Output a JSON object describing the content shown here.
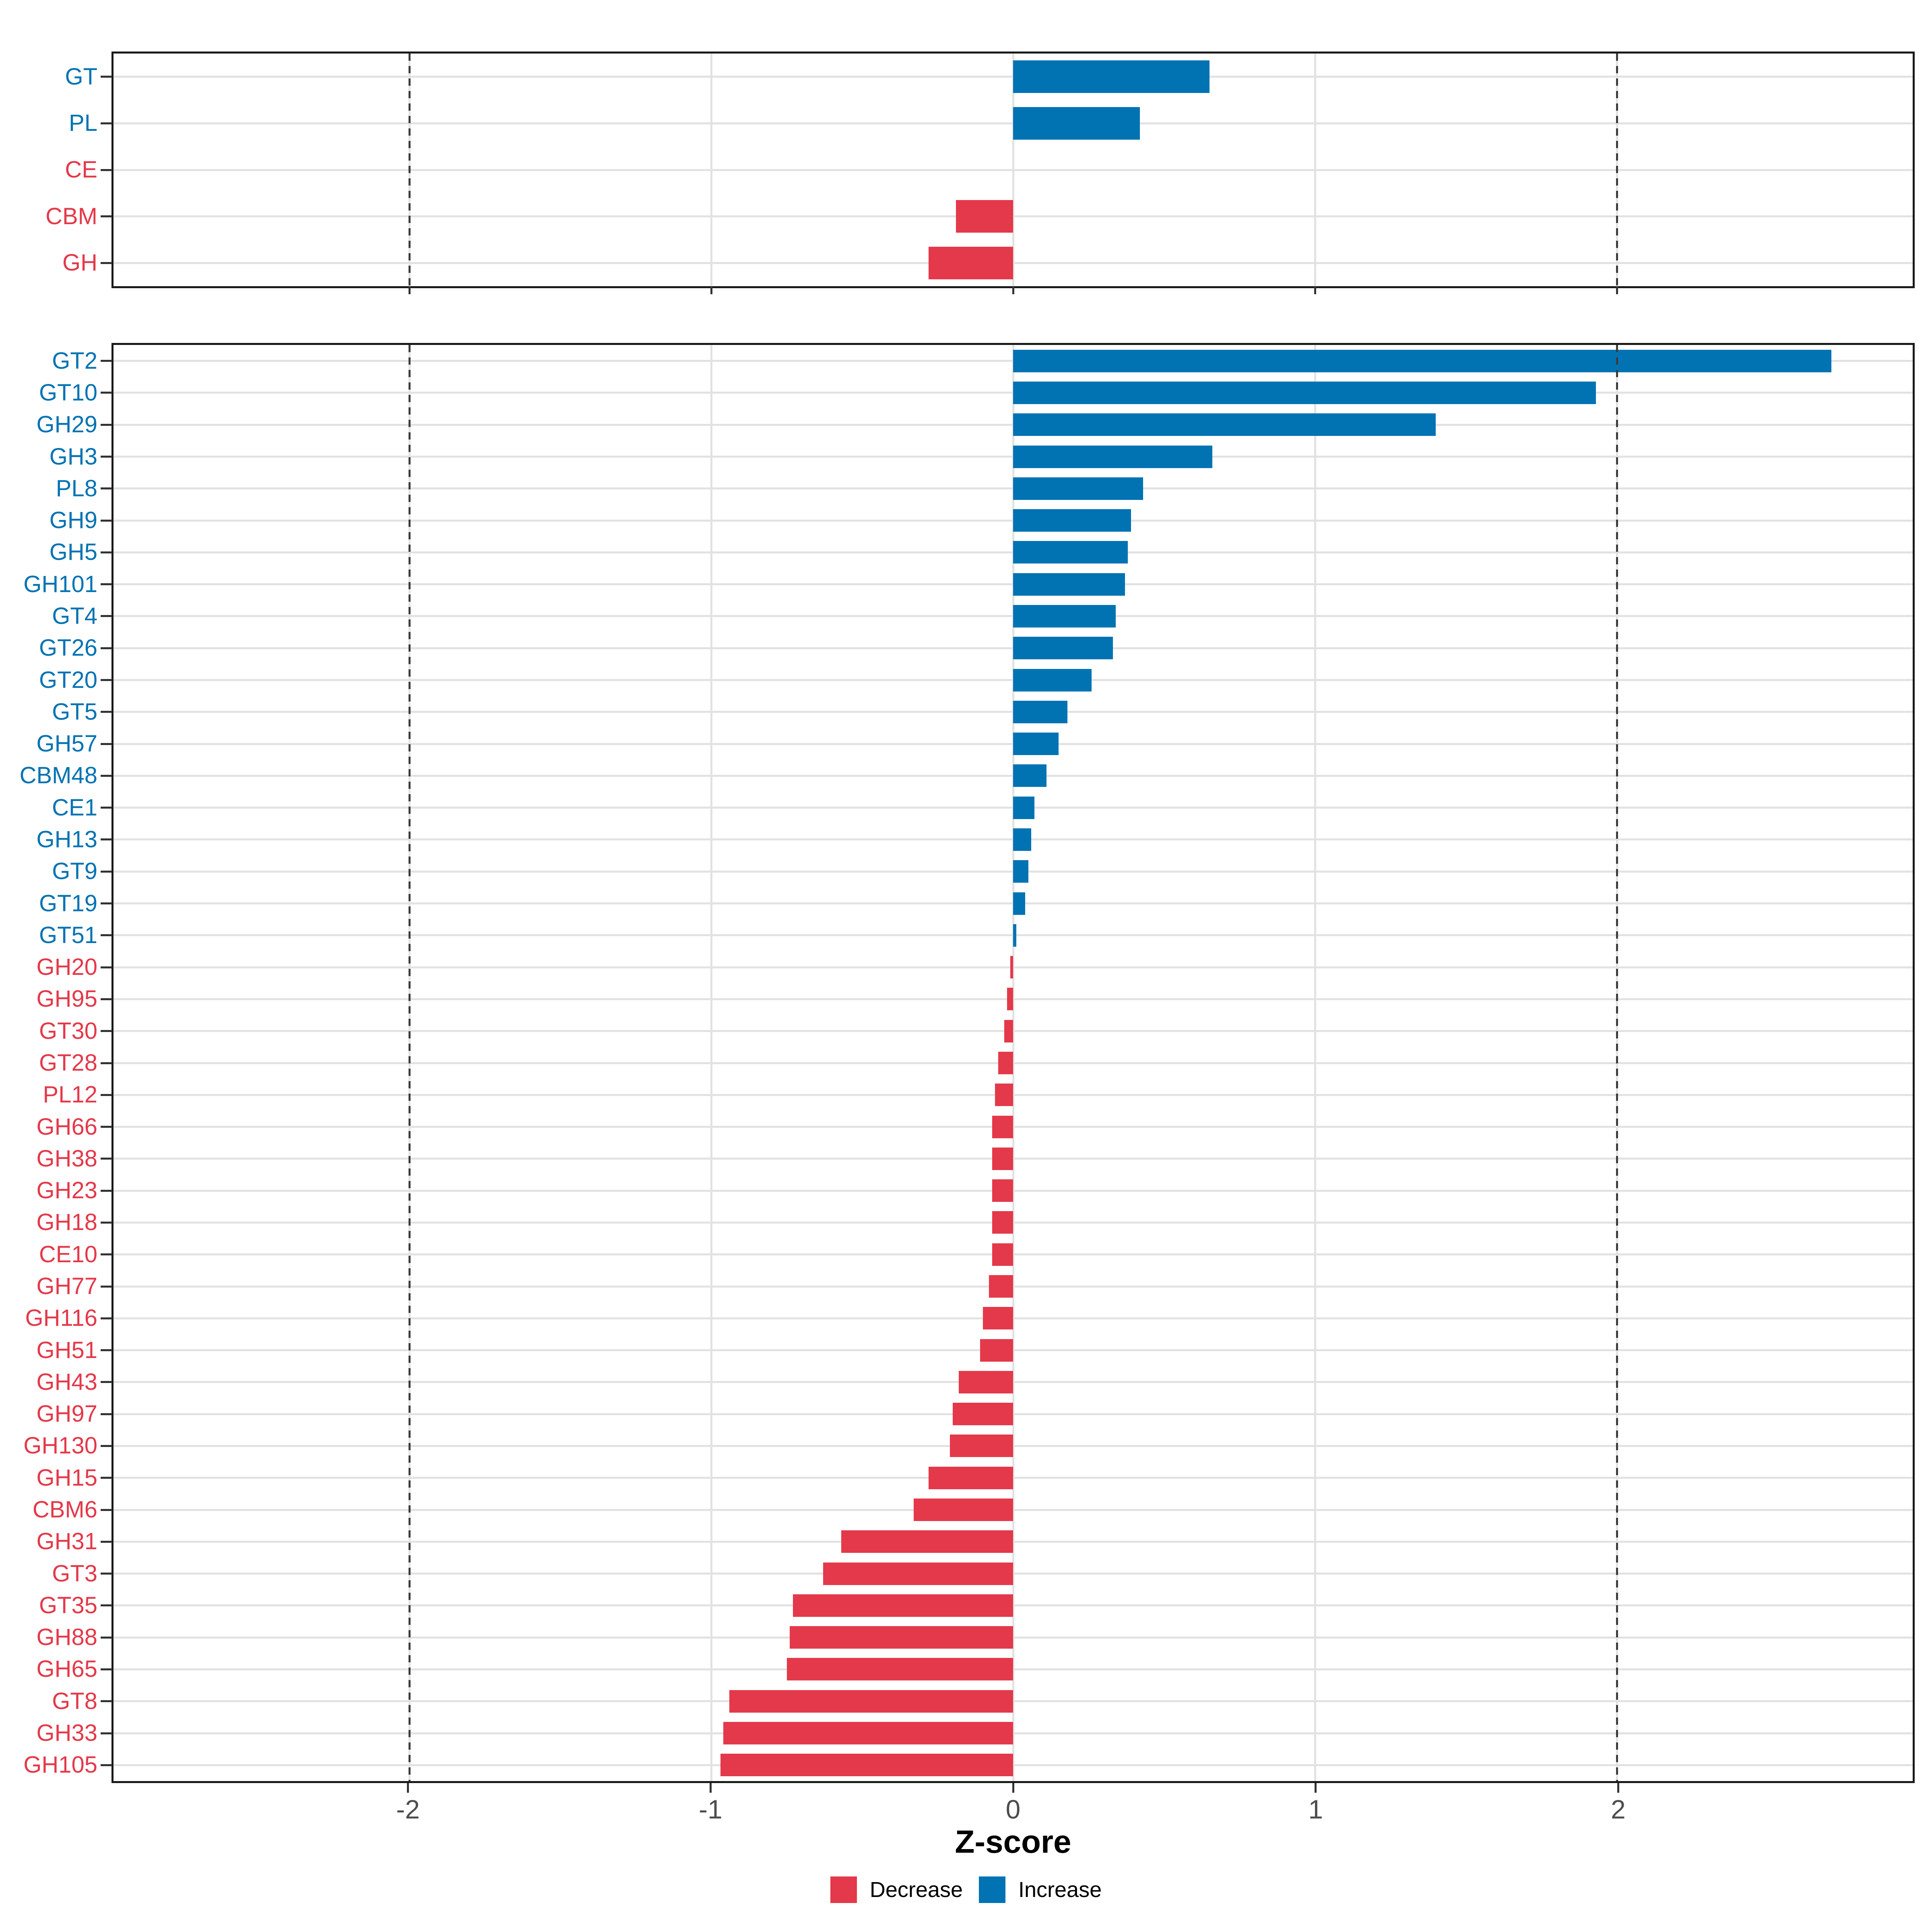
{
  "chart_data": {
    "type": "bar",
    "orientation": "horizontal",
    "xlabel": "Z-score",
    "xlim": [
      -2.98,
      2.98
    ],
    "x_ticks": [
      -2,
      -1,
      0,
      1,
      2
    ],
    "reference_lines_x": [
      -2,
      2
    ],
    "grid": true,
    "legend_position": "bottom",
    "legend": [
      {
        "key": "decrease",
        "label": "Decrease"
      },
      {
        "key": "increase",
        "label": "Increase"
      }
    ],
    "panels": [
      {
        "name": "cazyme-class-panel",
        "categories": [
          "GT",
          "PL",
          "CE",
          "CBM",
          "GH"
        ],
        "values": [
          0.65,
          0.42,
          0,
          -0.19,
          -0.28
        ]
      },
      {
        "name": "cazyme-family-panel",
        "categories": [
          "GT2",
          "GT10",
          "GH29",
          "GH3",
          "PL8",
          "GH9",
          "GH5",
          "GH101",
          "GT4",
          "GT26",
          "GT20",
          "GT5",
          "GH57",
          "CBM48",
          "CE1",
          "GH13",
          "GT9",
          "GT19",
          "GT51",
          "GH20",
          "GH95",
          "GT30",
          "GT28",
          "PL12",
          "GH66",
          "GH38",
          "GH23",
          "GH18",
          "CE10",
          "GH77",
          "GH116",
          "GH51",
          "GH43",
          "GH97",
          "GH130",
          "GH15",
          "CBM6",
          "GH31",
          "GT3",
          "GT35",
          "GH88",
          "GH65",
          "GT8",
          "GH33",
          "GH105"
        ],
        "values": [
          2.71,
          1.93,
          1.4,
          0.66,
          0.43,
          0.39,
          0.38,
          0.37,
          0.34,
          0.33,
          0.26,
          0.18,
          0.15,
          0.11,
          0.07,
          0.06,
          0.05,
          0.04,
          0.01,
          -0.01,
          -0.02,
          -0.03,
          -0.05,
          -0.06,
          -0.07,
          -0.07,
          -0.07,
          -0.07,
          -0.07,
          -0.08,
          -0.1,
          -0.11,
          -0.18,
          -0.2,
          -0.21,
          -0.28,
          -0.33,
          -0.57,
          -0.63,
          -0.73,
          -0.74,
          -0.75,
          -0.94,
          -0.96,
          -0.97
        ]
      }
    ],
    "colors": {
      "increase": "#0173B3",
      "decrease": "#E4394A",
      "gridline": "#E2E2E2",
      "reference_line": "#3C3C3C",
      "panel_border": "#1A1A1A",
      "tick_mark": "#333333",
      "tick_label": "#4D4D4D"
    }
  }
}
